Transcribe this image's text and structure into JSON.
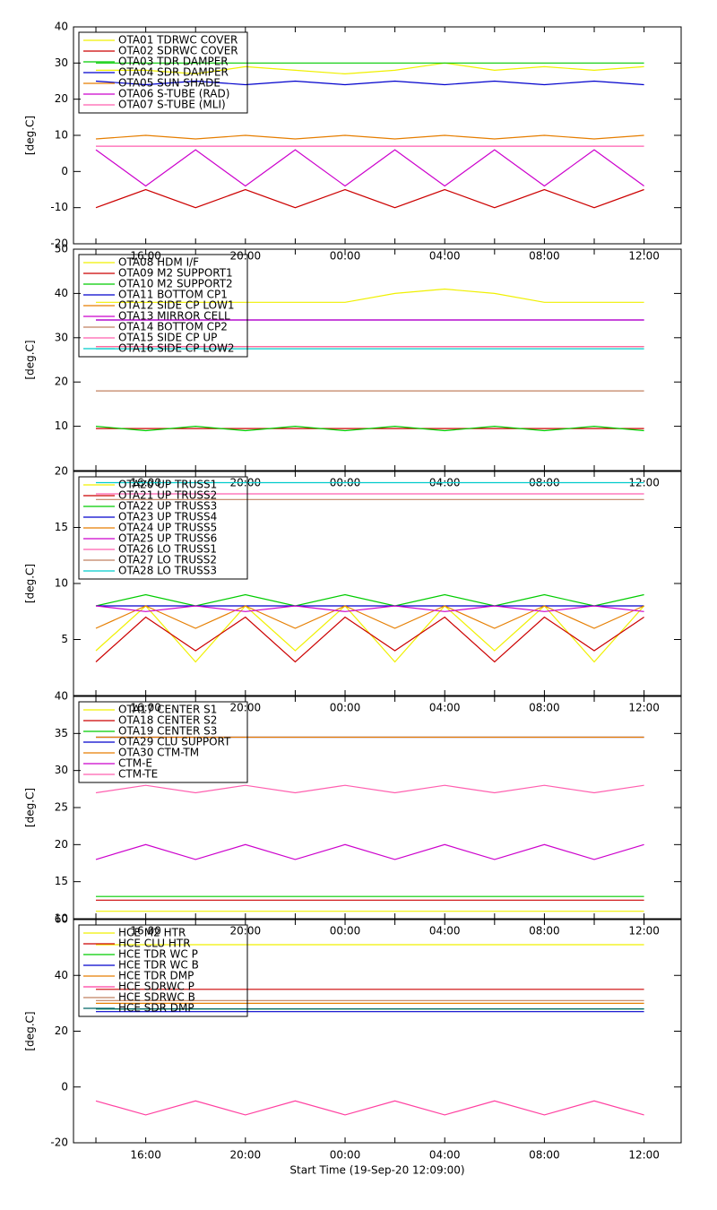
{
  "chart_data": [
    {
      "type": "line",
      "ylabel": "[deg.C]",
      "ylim": [
        -20,
        40
      ],
      "yticks": [
        -20,
        -10,
        0,
        10,
        20,
        30,
        40
      ],
      "categories": [
        null,
        "16:00",
        null,
        "20:00",
        null,
        "00:00",
        null,
        "04:00",
        null,
        "08:00",
        null,
        "12:00"
      ],
      "series": [
        {
          "name": "OTA01 TDRWC COVER",
          "color": "#f0f000",
          "values": [
            28,
            28,
            27,
            29,
            28,
            27,
            28,
            30,
            28,
            29,
            28,
            29
          ]
        },
        {
          "name": "OTA02 SDRWC COVER",
          "color": "#cc0000",
          "values": [
            -10,
            -5,
            -10,
            -5,
            -10,
            -5,
            -10,
            -5,
            -10,
            -5,
            -10,
            -5
          ]
        },
        {
          "name": "OTA03 TDR DAMPER",
          "color": "#00cc00",
          "values": [
            30,
            30,
            30,
            30,
            30,
            30,
            30,
            30,
            30,
            30,
            30,
            30
          ]
        },
        {
          "name": "OTA04 SDR DAMPER",
          "color": "#0000cc",
          "values": [
            25,
            24,
            25,
            24,
            25,
            24,
            25,
            24,
            25,
            24,
            25,
            24
          ]
        },
        {
          "name": "OTA05 SUN SHADE",
          "color": "#e67e00",
          "values": [
            9,
            10,
            9,
            10,
            9,
            10,
            9,
            10,
            9,
            10,
            9,
            10
          ]
        },
        {
          "name": "OTA06 S-TUBE (RAD)",
          "color": "#cc00cc",
          "values": [
            6,
            -4,
            6,
            -4,
            6,
            -4,
            6,
            -4,
            6,
            -4,
            6,
            -4
          ]
        },
        {
          "name": "OTA07 S-TUBE (MLI)",
          "color": "#ff5faf",
          "values": [
            7,
            7,
            7,
            7,
            7,
            7,
            7,
            7,
            7,
            7,
            7,
            7
          ]
        }
      ]
    },
    {
      "type": "line",
      "ylabel": "[deg.C]",
      "ylim": [
        0,
        50
      ],
      "yticks": [
        10,
        20,
        30,
        40,
        50
      ],
      "categories": [
        null,
        "16:00",
        null,
        "20:00",
        null,
        "00:00",
        null,
        "04:00",
        null,
        "08:00",
        null,
        "12:00"
      ],
      "series": [
        {
          "name": "OTA08 HDM I/F",
          "color": "#f0f000",
          "values": [
            38,
            38,
            38,
            38,
            38,
            38,
            40,
            41,
            40,
            38,
            38,
            38
          ]
        },
        {
          "name": "OTA09 M2 SUPPORT1",
          "color": "#cc0000",
          "values": [
            9.5,
            9.5,
            9.5,
            9.5,
            9.5,
            9.5,
            9.5,
            9.5,
            9.5,
            9.5,
            9.5,
            9.5
          ]
        },
        {
          "name": "OTA10 M2 SUPPORT2",
          "color": "#00cc00",
          "values": [
            10,
            9,
            10,
            9,
            10,
            9,
            10,
            9,
            10,
            9,
            10,
            9
          ]
        },
        {
          "name": "OTA11 BOTTOM CP1",
          "color": "#0000cc",
          "values": [
            34,
            34,
            34,
            34,
            34,
            34,
            34,
            34,
            34,
            34,
            34,
            34
          ]
        },
        {
          "name": "OTA12 SIDE CP LOW1",
          "color": "#e67e00",
          "values": [
            28,
            28,
            28,
            28,
            28,
            28,
            28,
            28,
            28,
            28,
            28,
            28
          ]
        },
        {
          "name": "OTA13 MIRROR CELL",
          "color": "#cc00cc",
          "values": [
            34,
            34,
            34,
            34,
            34,
            34,
            34,
            34,
            34,
            34,
            34,
            34
          ]
        },
        {
          "name": "OTA14 BOTTOM CP2",
          "color": "#c08060",
          "values": [
            18,
            18,
            18,
            18,
            18,
            18,
            18,
            18,
            18,
            18,
            18,
            18
          ]
        },
        {
          "name": "OTA15 SIDE CP UP",
          "color": "#ff5faf",
          "values": [
            28,
            28,
            28,
            28,
            28,
            28,
            28,
            28,
            28,
            28,
            28,
            28
          ]
        },
        {
          "name": "OTA16 SIDE CP LOW2",
          "color": "#00cccc",
          "values": [
            27.5,
            27.5,
            27.5,
            27.5,
            27.5,
            27.5,
            27.5,
            27.5,
            27.5,
            27.5,
            27.5,
            27.5
          ]
        }
      ]
    },
    {
      "type": "line",
      "ylabel": "[deg.C]",
      "ylim": [
        0,
        20
      ],
      "yticks": [
        5,
        10,
        15,
        20
      ],
      "categories": [
        null,
        "16:00",
        null,
        "20:00",
        null,
        "00:00",
        null,
        "04:00",
        null,
        "08:00",
        null,
        "12:00"
      ],
      "series": [
        {
          "name": "OTA20 UP TRUSS1",
          "color": "#f0f000",
          "values": [
            4,
            8,
            3,
            8,
            4,
            8,
            3,
            8,
            4,
            8,
            3,
            8
          ]
        },
        {
          "name": "OTA21 UP TRUSS2",
          "color": "#cc0000",
          "values": [
            3,
            7,
            4,
            7,
            3,
            7,
            4,
            7,
            3,
            7,
            4,
            7
          ]
        },
        {
          "name": "OTA22 UP TRUSS3",
          "color": "#00cc00",
          "values": [
            8,
            9,
            8,
            9,
            8,
            9,
            8,
            9,
            8,
            9,
            8,
            9
          ]
        },
        {
          "name": "OTA23 UP TRUSS4",
          "color": "#0000cc",
          "values": [
            8,
            8,
            8,
            8,
            8,
            8,
            8,
            8,
            8,
            8,
            8,
            8
          ]
        },
        {
          "name": "OTA24 UP TRUSS5",
          "color": "#e67e00",
          "values": [
            6,
            8,
            6,
            8,
            6,
            8,
            6,
            8,
            6,
            8,
            6,
            8
          ]
        },
        {
          "name": "OTA25 UP TRUSS6",
          "color": "#cc00cc",
          "values": [
            8,
            7.5,
            8,
            7.5,
            8,
            7.5,
            8,
            7.5,
            8,
            7.5,
            8,
            7.5
          ]
        },
        {
          "name": "OTA26 LO TRUSS1",
          "color": "#ff5faf",
          "values": [
            18,
            18,
            18,
            18,
            18,
            18,
            18,
            18,
            18,
            18,
            18,
            18
          ]
        },
        {
          "name": "OTA27 LO TRUSS2",
          "color": "#c08060",
          "values": [
            17.5,
            17.5,
            17.5,
            17.5,
            17.5,
            17.5,
            17.5,
            17.5,
            17.5,
            17.5,
            17.5,
            17.5
          ]
        },
        {
          "name": "OTA28 LO TRUSS3",
          "color": "#00cccc",
          "values": [
            19,
            19,
            19,
            19,
            19,
            19,
            19,
            19,
            19,
            19,
            19,
            19
          ]
        }
      ]
    },
    {
      "type": "line",
      "ylabel": "[deg.C]",
      "ylim": [
        10,
        40
      ],
      "yticks": [
        10,
        15,
        20,
        25,
        30,
        35,
        40
      ],
      "categories": [
        null,
        "16:00",
        null,
        "20:00",
        null,
        "00:00",
        null,
        "04:00",
        null,
        "08:00",
        null,
        "12:00"
      ],
      "series": [
        {
          "name": "OTA17 CENTER S1",
          "color": "#f0f000",
          "values": [
            11,
            11,
            11,
            11,
            11,
            11,
            11,
            11,
            11,
            11,
            11,
            11
          ]
        },
        {
          "name": "OTA18 CENTER S2",
          "color": "#cc0000",
          "values": [
            12.5,
            12.5,
            12.5,
            12.5,
            12.5,
            12.5,
            12.5,
            12.5,
            12.5,
            12.5,
            12.5,
            12.5
          ]
        },
        {
          "name": "OTA19 CENTER S3",
          "color": "#00cc00",
          "values": [
            13,
            13,
            13,
            13,
            13,
            13,
            13,
            13,
            13,
            13,
            13,
            13
          ]
        },
        {
          "name": "OTA29 CLU SUPPORT",
          "color": "#0000cc",
          "values": [
            34.5,
            34.5,
            34.5,
            34.5,
            34.5,
            34.5,
            34.5,
            34.5,
            34.5,
            34.5,
            34.5,
            34.5
          ]
        },
        {
          "name": "OTA30 CTM-TM",
          "color": "#e67e00",
          "values": [
            34.5,
            34.5,
            34.5,
            34.5,
            34.5,
            34.5,
            34.5,
            34.5,
            34.5,
            34.5,
            34.5,
            34.5
          ]
        },
        {
          "name": "CTM-E",
          "color": "#cc00cc",
          "values": [
            18,
            20,
            18,
            20,
            18,
            20,
            18,
            20,
            18,
            20,
            18,
            20
          ]
        },
        {
          "name": "CTM-TE",
          "color": "#ff5faf",
          "values": [
            27,
            28,
            27,
            28,
            27,
            28,
            27,
            28,
            27,
            28,
            27,
            28
          ]
        }
      ]
    },
    {
      "type": "line",
      "ylabel": "[deg.C]",
      "xlabel": "Start Time (19-Sep-20 12:09:00)",
      "ylim": [
        -20,
        60
      ],
      "yticks": [
        -20,
        0,
        20,
        40,
        60
      ],
      "categories": [
        null,
        "16:00",
        null,
        "20:00",
        null,
        "00:00",
        null,
        "04:00",
        null,
        "08:00",
        null,
        "12:00"
      ],
      "series": [
        {
          "name": "HCE M2 HTR",
          "color": "#f0f000",
          "values": [
            51,
            51,
            51,
            51,
            51,
            51,
            51,
            51,
            51,
            51,
            51,
            51
          ]
        },
        {
          "name": "HCE CLU HTR",
          "color": "#cc0000",
          "values": [
            35,
            35,
            35,
            35,
            35,
            35,
            35,
            35,
            35,
            35,
            35,
            35
          ]
        },
        {
          "name": "HCE TDR WC P",
          "color": "#00cc00",
          "values": [
            28,
            28,
            28,
            28,
            28,
            28,
            28,
            28,
            28,
            28,
            28,
            28
          ]
        },
        {
          "name": "HCE TDR WC B",
          "color": "#0000cc",
          "values": [
            27,
            27,
            27,
            27,
            27,
            27,
            27,
            27,
            27,
            27,
            27,
            27
          ]
        },
        {
          "name": "HCE TDR DMP",
          "color": "#e67e00",
          "values": [
            30,
            30,
            30,
            30,
            30,
            30,
            30,
            30,
            30,
            30,
            30,
            30
          ]
        },
        {
          "name": "HCE SDRWC P",
          "color": "#ff3fa0",
          "values": [
            -5,
            -10,
            -5,
            -10,
            -5,
            -10,
            -5,
            -10,
            -5,
            -10,
            -5,
            -10
          ]
        },
        {
          "name": "HCE SDRWC B",
          "color": "#c08060",
          "values": [
            31,
            31,
            31,
            31,
            31,
            31,
            31,
            31,
            31,
            31,
            31,
            31
          ]
        },
        {
          "name": "HCE SDR DMP",
          "color": "#006666",
          "values": [
            28,
            28,
            28,
            28,
            28,
            28,
            28,
            28,
            28,
            28,
            28,
            28
          ]
        }
      ]
    }
  ]
}
